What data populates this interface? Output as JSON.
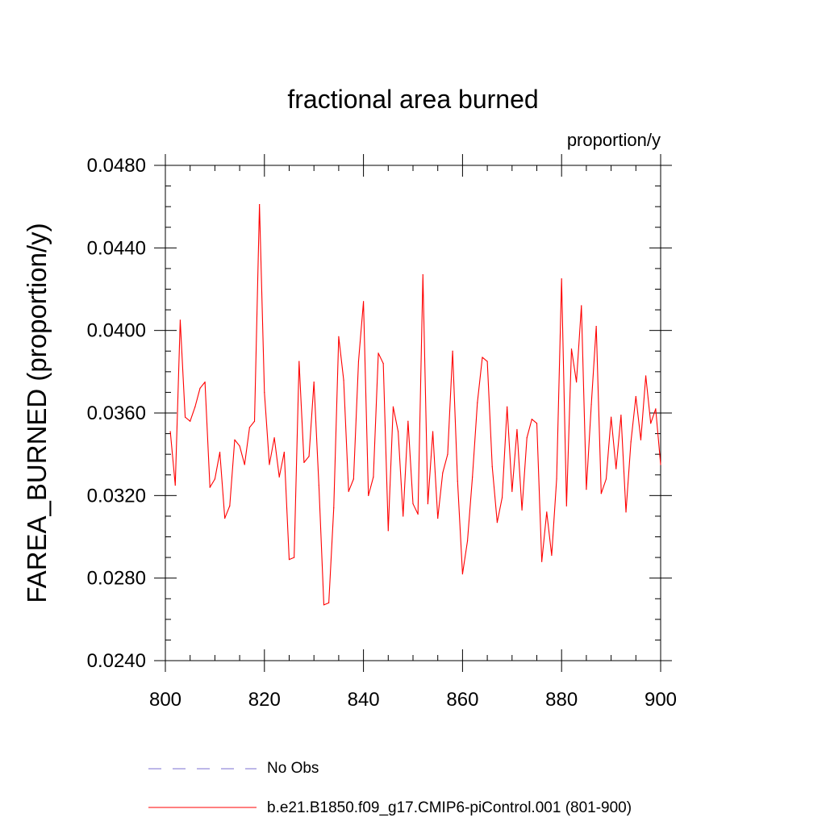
{
  "chart_data": {
    "type": "line",
    "title": "fractional area burned",
    "units_label": "proportion/y",
    "ylabel": "FAREA_BURNED  (proportion/y)",
    "xlabel": "",
    "xlim": [
      800,
      900
    ],
    "ylim": [
      0.024,
      0.048
    ],
    "x_ticks": [
      "800",
      "820",
      "840",
      "860",
      "880",
      "900"
    ],
    "y_ticks": [
      "0.0240",
      "0.0280",
      "0.0320",
      "0.0360",
      "0.0400",
      "0.0440",
      "0.0480"
    ],
    "grid": false,
    "legend_position": "bottom",
    "series": [
      {
        "name": "No Obs",
        "color": "#7b6fd0",
        "style": "dashed",
        "x": [],
        "y": []
      },
      {
        "name": "b.e21.B1850.f09_g17.CMIP6-piControl.001 (801-900)",
        "color": "#ff0000",
        "style": "solid",
        "x": [
          801,
          802,
          803,
          804,
          805,
          806,
          807,
          808,
          809,
          810,
          811,
          812,
          813,
          814,
          815,
          816,
          817,
          818,
          819,
          820,
          821,
          822,
          823,
          824,
          825,
          826,
          827,
          828,
          829,
          830,
          831,
          832,
          833,
          834,
          835,
          836,
          837,
          838,
          839,
          840,
          841,
          842,
          843,
          844,
          845,
          846,
          847,
          848,
          849,
          850,
          851,
          852,
          853,
          854,
          855,
          856,
          857,
          858,
          859,
          860,
          861,
          862,
          863,
          864,
          865,
          866,
          867,
          868,
          869,
          870,
          871,
          872,
          873,
          874,
          875,
          876,
          877,
          878,
          879,
          880,
          881,
          882,
          883,
          884,
          885,
          886,
          887,
          888,
          889,
          890,
          891,
          892,
          893,
          894,
          895,
          896,
          897,
          898,
          899,
          900
        ],
        "y": [
          0.0351,
          0.0325,
          0.0405,
          0.0358,
          0.0356,
          0.0363,
          0.0372,
          0.0375,
          0.0324,
          0.0328,
          0.0341,
          0.0309,
          0.0315,
          0.0347,
          0.0344,
          0.0335,
          0.0353,
          0.0356,
          0.0461,
          0.037,
          0.0335,
          0.0348,
          0.0329,
          0.0341,
          0.0289,
          0.029,
          0.0385,
          0.0336,
          0.0339,
          0.0375,
          0.0325,
          0.0267,
          0.0268,
          0.0314,
          0.0397,
          0.0376,
          0.0322,
          0.0328,
          0.0385,
          0.0414,
          0.032,
          0.0329,
          0.0389,
          0.0384,
          0.0303,
          0.0363,
          0.0351,
          0.031,
          0.0356,
          0.0316,
          0.0311,
          0.0427,
          0.0316,
          0.0351,
          0.0309,
          0.0331,
          0.034,
          0.039,
          0.0327,
          0.0282,
          0.0298,
          0.0329,
          0.0365,
          0.0387,
          0.0385,
          0.0334,
          0.0307,
          0.0319,
          0.0363,
          0.0322,
          0.0352,
          0.0313,
          0.0348,
          0.0357,
          0.0355,
          0.0288,
          0.0312,
          0.0291,
          0.0328,
          0.0425,
          0.0315,
          0.0391,
          0.0375,
          0.0412,
          0.0323,
          0.0364,
          0.0402,
          0.0321,
          0.0328,
          0.0358,
          0.0333,
          0.0359,
          0.0312,
          0.0346,
          0.0368,
          0.0347,
          0.0378,
          0.0355,
          0.0362,
          0.0335
        ]
      }
    ]
  }
}
